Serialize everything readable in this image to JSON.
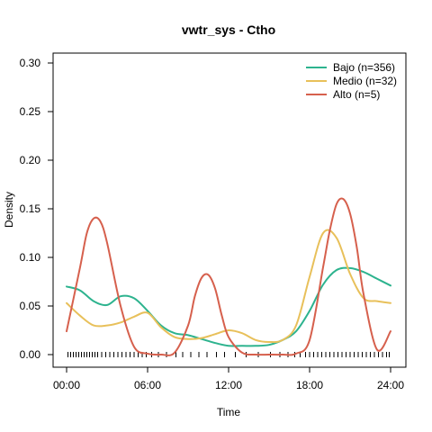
{
  "chart_data": {
    "type": "line",
    "title": "vwtr_sys - Ctho",
    "xlabel": "Time",
    "ylabel": "Density",
    "xlim": [
      0,
      24
    ],
    "ylim": [
      0,
      0.3
    ],
    "x_ticks": [
      {
        "value": 0,
        "label": "00:00"
      },
      {
        "value": 6,
        "label": "06:00"
      },
      {
        "value": 12,
        "label": "12:00"
      },
      {
        "value": 18,
        "label": "18:00"
      },
      {
        "value": 24,
        "label": "24:00"
      }
    ],
    "y_ticks": [
      {
        "value": 0.0,
        "label": "0.00"
      },
      {
        "value": 0.05,
        "label": "0.05"
      },
      {
        "value": 0.1,
        "label": "0.10"
      },
      {
        "value": 0.15,
        "label": "0.15"
      },
      {
        "value": 0.2,
        "label": "0.20"
      },
      {
        "value": 0.25,
        "label": "0.25"
      },
      {
        "value": 0.3,
        "label": "0.30"
      }
    ],
    "grid": false,
    "legend_position": "top-right",
    "series": [
      {
        "name": "Bajo (n=356)",
        "color": "#2db38e",
        "x": [
          0,
          1,
          2,
          3,
          4,
          5,
          6,
          7,
          8,
          9,
          10,
          11,
          12,
          13,
          14,
          15,
          16,
          17,
          18,
          19,
          20,
          21,
          22,
          23,
          24
        ],
        "y": [
          0.07,
          0.066,
          0.055,
          0.051,
          0.06,
          0.058,
          0.045,
          0.03,
          0.022,
          0.02,
          0.016,
          0.012,
          0.009,
          0.009,
          0.009,
          0.01,
          0.015,
          0.024,
          0.045,
          0.072,
          0.087,
          0.089,
          0.085,
          0.078,
          0.071
        ]
      },
      {
        "name": "Medio (n=32)",
        "color": "#e8c05a",
        "x": [
          0,
          1,
          2,
          3,
          4,
          5,
          6,
          7,
          8,
          9,
          10,
          11,
          12,
          13,
          14,
          15,
          16,
          17,
          18,
          19,
          20,
          21,
          22,
          23,
          24
        ],
        "y": [
          0.053,
          0.04,
          0.03,
          0.03,
          0.033,
          0.039,
          0.043,
          0.028,
          0.018,
          0.016,
          0.017,
          0.021,
          0.025,
          0.022,
          0.015,
          0.013,
          0.015,
          0.03,
          0.08,
          0.125,
          0.12,
          0.083,
          0.058,
          0.055,
          0.053
        ]
      },
      {
        "name": "Alto (n=5)",
        "color": "#d6604d",
        "x": [
          0,
          1,
          1.5,
          2,
          2.5,
          3,
          4,
          5,
          6,
          7,
          8,
          9,
          9.5,
          10,
          10.5,
          11,
          11.5,
          12,
          13,
          14,
          15,
          16,
          17,
          18,
          19,
          19.5,
          20,
          20.5,
          21,
          21.5,
          22,
          23,
          24
        ],
        "y": [
          0.024,
          0.09,
          0.125,
          0.14,
          0.137,
          0.115,
          0.05,
          0.008,
          0.001,
          0.0,
          0.002,
          0.03,
          0.06,
          0.079,
          0.082,
          0.068,
          0.04,
          0.018,
          0.002,
          0.0,
          0.0,
          0.0,
          0.001,
          0.015,
          0.09,
          0.128,
          0.155,
          0.16,
          0.145,
          0.11,
          0.062,
          0.005,
          0.024
        ]
      }
    ],
    "rug": [
      0.1,
      0.3,
      0.5,
      0.7,
      0.9,
      1.1,
      1.3,
      1.5,
      1.7,
      1.9,
      2.1,
      2.3,
      2.6,
      2.9,
      3.2,
      3.5,
      3.8,
      4.1,
      4.4,
      4.7,
      5.0,
      5.3,
      5.6,
      5.9,
      6.3,
      6.8,
      7.4,
      8.1,
      8.6,
      9.2,
      9.8,
      10.4,
      11.1,
      11.7,
      12.5,
      13.3,
      14.2,
      15.1,
      15.8,
      16.4,
      16.9,
      17.3,
      17.7,
      18.0,
      18.3,
      18.6,
      18.9,
      19.2,
      19.5,
      19.8,
      20.1,
      20.4,
      20.7,
      21.0,
      21.3,
      21.6,
      21.9,
      22.2,
      22.5,
      22.8,
      23.1,
      23.4,
      23.7,
      23.9
    ]
  }
}
